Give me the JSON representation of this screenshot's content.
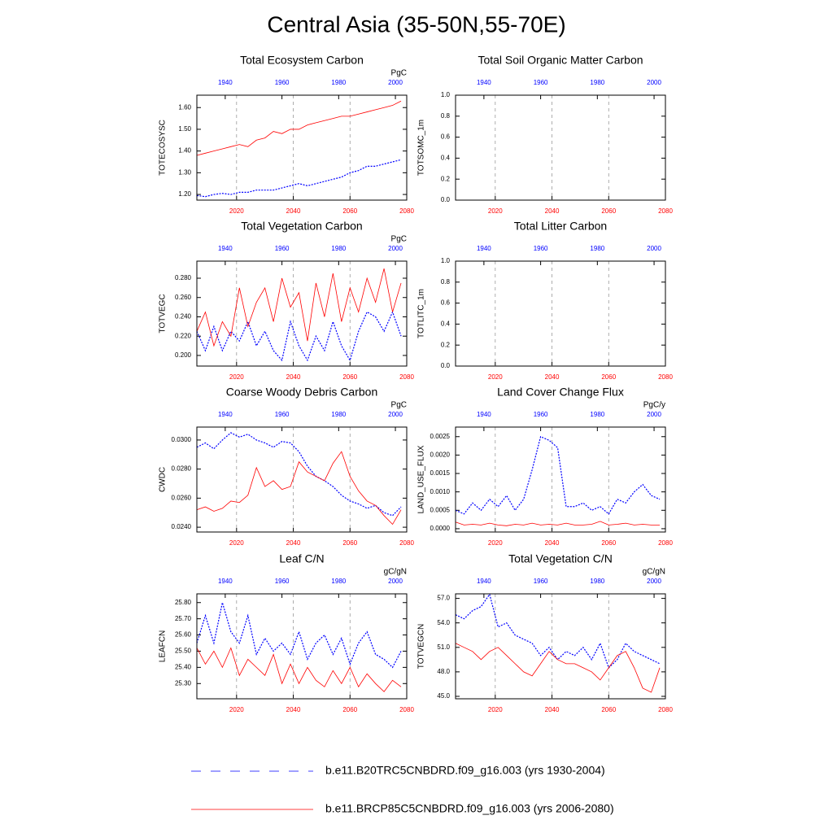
{
  "title": "Central Asia (35-50N,55-70E)",
  "legend": [
    {
      "name": "b.e11.B20TRC5CNBDRD.f09_g16.003 (yrs 1930-2004)",
      "color": "#0000ff",
      "dash": true,
      "axis": "x2"
    },
    {
      "name": "b.e11.BRCP85C5CNBDRD.f09_g16.003 (yrs 2006-2080)",
      "color": "#ff0000",
      "dash": false,
      "axis": "x"
    }
  ],
  "chart_data": [
    {
      "type": "line",
      "title": "Total Ecosystem Carbon",
      "ylabel": "TOTECOSYSC",
      "units": "PgC",
      "xlim": [
        2006,
        2080
      ],
      "xticks": [
        2020,
        2040,
        2060,
        2080
      ],
      "x2lim": [
        1930,
        2004
      ],
      "x2ticks": [
        1940,
        1960,
        1980,
        2000
      ],
      "ylim": [
        1.174,
        1.657
      ],
      "yticks": [
        {
          "value": 1.2,
          "label": "1.20"
        },
        {
          "value": 1.3,
          "label": "1.30"
        },
        {
          "value": 1.4,
          "label": "1.40"
        },
        {
          "value": 1.5,
          "label": "1.50"
        },
        {
          "value": 1.6,
          "label": "1.60"
        }
      ],
      "grid": true,
      "series": [
        {
          "x": [
            1930,
            1933,
            1936,
            1939,
            1942,
            1945,
            1948,
            1951,
            1954,
            1957,
            1960,
            1963,
            1966,
            1969,
            1972,
            1975,
            1978,
            1981,
            1984,
            1987,
            1990,
            1993,
            1996,
            1999,
            2002
          ],
          "values": [
            1.195,
            1.19,
            1.2,
            1.205,
            1.2,
            1.21,
            1.21,
            1.22,
            1.22,
            1.22,
            1.23,
            1.24,
            1.25,
            1.24,
            1.25,
            1.26,
            1.27,
            1.28,
            1.3,
            1.31,
            1.33,
            1.33,
            1.34,
            1.35,
            1.36
          ]
        },
        {
          "x": [
            2006,
            2009,
            2012,
            2015,
            2018,
            2021,
            2024,
            2027,
            2030,
            2033,
            2036,
            2039,
            2042,
            2045,
            2048,
            2051,
            2054,
            2057,
            2060,
            2063,
            2066,
            2069,
            2072,
            2075,
            2078
          ],
          "values": [
            1.38,
            1.39,
            1.4,
            1.41,
            1.42,
            1.43,
            1.42,
            1.45,
            1.46,
            1.49,
            1.48,
            1.5,
            1.5,
            1.52,
            1.53,
            1.54,
            1.55,
            1.56,
            1.56,
            1.57,
            1.58,
            1.59,
            1.6,
            1.61,
            1.63
          ]
        }
      ]
    },
    {
      "type": "line",
      "title": "Total Soil Organic Matter Carbon",
      "ylabel": "TOTSOMC_1m",
      "xlim": [
        2006,
        2080
      ],
      "xticks": [
        2020,
        2040,
        2060,
        2080
      ],
      "x2lim": [
        1930,
        2004
      ],
      "x2ticks": [
        1940,
        1960,
        1980,
        2000
      ],
      "ylim": [
        0,
        1
      ],
      "yticks": [
        {
          "value": 0,
          "label": "0.0"
        },
        0.2,
        0.4,
        0.6,
        0.8,
        {
          "value": 1,
          "label": "1.0"
        }
      ],
      "grid": true
    },
    {
      "type": "line",
      "title": "Total Vegetation Carbon",
      "ylabel": "TOTVEGC",
      "units": "PgC",
      "xlim": [
        2006,
        2080
      ],
      "xticks": [
        2020,
        2040,
        2060,
        2080
      ],
      "x2lim": [
        1930,
        2004
      ],
      "x2ticks": [
        1940,
        1960,
        1980,
        2000
      ],
      "ylim": [
        0.189,
        0.2977
      ],
      "yticks": [
        {
          "value": 0.2,
          "label": "0.200"
        },
        {
          "value": 0.22,
          "label": "0.220"
        },
        {
          "value": 0.24,
          "label": "0.240"
        },
        {
          "value": 0.26,
          "label": "0.260"
        },
        {
          "value": 0.28,
          "label": "0.280"
        }
      ],
      "grid": true,
      "series": [
        {
          "x": [
            1930,
            1933,
            1936,
            1939,
            1942,
            1945,
            1948,
            1951,
            1954,
            1957,
            1960,
            1963,
            1966,
            1969,
            1972,
            1975,
            1978,
            1981,
            1984,
            1987,
            1990,
            1993,
            1996,
            1999,
            2002
          ],
          "values": [
            0.225,
            0.205,
            0.23,
            0.205,
            0.225,
            0.215,
            0.235,
            0.21,
            0.225,
            0.205,
            0.195,
            0.235,
            0.21,
            0.195,
            0.22,
            0.205,
            0.235,
            0.21,
            0.195,
            0.225,
            0.245,
            0.24,
            0.225,
            0.245,
            0.22
          ]
        },
        {
          "x": [
            2006,
            2009,
            2012,
            2015,
            2018,
            2021,
            2024,
            2027,
            2030,
            2033,
            2036,
            2039,
            2042,
            2045,
            2048,
            2051,
            2054,
            2057,
            2060,
            2063,
            2066,
            2069,
            2072,
            2075,
            2078
          ],
          "values": [
            0.225,
            0.245,
            0.21,
            0.235,
            0.22,
            0.27,
            0.23,
            0.255,
            0.27,
            0.235,
            0.28,
            0.25,
            0.265,
            0.215,
            0.275,
            0.24,
            0.285,
            0.235,
            0.27,
            0.245,
            0.28,
            0.255,
            0.29,
            0.245,
            0.275
          ]
        }
      ]
    },
    {
      "type": "line",
      "title": "Total Litter Carbon",
      "ylabel": "TOTLITC_1m",
      "xlim": [
        2006,
        2080
      ],
      "xticks": [
        2020,
        2040,
        2060,
        2080
      ],
      "x2lim": [
        1930,
        2004
      ],
      "x2ticks": [
        1940,
        1960,
        1980,
        2000
      ],
      "ylim": [
        0,
        1
      ],
      "yticks": [
        {
          "value": 0,
          "label": "0.0"
        },
        0.2,
        0.4,
        0.6,
        0.8,
        {
          "value": 1,
          "label": "1.0"
        }
      ],
      "grid": true
    },
    {
      "type": "line",
      "title": "Coarse Woody Debris Carbon",
      "ylabel": "CWDC",
      "units": "PgC",
      "xlim": [
        2006,
        2080
      ],
      "xticks": [
        2020,
        2040,
        2060,
        2080
      ],
      "x2lim": [
        1930,
        2004
      ],
      "x2ticks": [
        1940,
        1960,
        1980,
        2000
      ],
      "ylim": [
        0.02367,
        0.03089
      ],
      "yticks": [
        {
          "value": 0.024,
          "label": "0.0240"
        },
        {
          "value": 0.026,
          "label": "0.0260"
        },
        {
          "value": 0.028,
          "label": "0.0280"
        },
        {
          "value": 0.03,
          "label": "0.0300"
        }
      ],
      "grid": true,
      "series": [
        {
          "x": [
            1930,
            1933,
            1936,
            1939,
            1942,
            1945,
            1948,
            1951,
            1954,
            1957,
            1960,
            1963,
            1966,
            1969,
            1972,
            1975,
            1978,
            1981,
            1984,
            1987,
            1990,
            1993,
            1996,
            1999,
            2002
          ],
          "values": [
            0.0295,
            0.0298,
            0.0294,
            0.03,
            0.0305,
            0.0302,
            0.0304,
            0.03,
            0.0298,
            0.0295,
            0.0299,
            0.0298,
            0.0292,
            0.0282,
            0.0275,
            0.0272,
            0.0268,
            0.0262,
            0.0258,
            0.0256,
            0.0253,
            0.0255,
            0.025,
            0.0248,
            0.0254
          ]
        },
        {
          "x": [
            2006,
            2009,
            2012,
            2015,
            2018,
            2021,
            2024,
            2027,
            2030,
            2033,
            2036,
            2039,
            2042,
            2045,
            2048,
            2051,
            2054,
            2057,
            2060,
            2063,
            2066,
            2069,
            2072,
            2075,
            2078
          ],
          "values": [
            0.0252,
            0.0254,
            0.0251,
            0.0253,
            0.0258,
            0.0257,
            0.0262,
            0.0281,
            0.0268,
            0.0272,
            0.0266,
            0.0268,
            0.0285,
            0.0278,
            0.0275,
            0.0272,
            0.0284,
            0.0292,
            0.0275,
            0.0265,
            0.0258,
            0.0255,
            0.0248,
            0.0242,
            0.0252
          ]
        }
      ]
    },
    {
      "type": "line",
      "title": "Land Cover Change Flux",
      "ylabel": "LAND_USE_FLUX",
      "units": "PgC/y",
      "xlim": [
        2006,
        2080
      ],
      "xticks": [
        2020,
        2040,
        2060,
        2080
      ],
      "x2lim": [
        1930,
        2004
      ],
      "x2ticks": [
        1940,
        1960,
        1980,
        2000
      ],
      "ylim": [
        -9e-05,
        0.00276
      ],
      "yticks": [
        {
          "value": 0,
          "label": "0.0000"
        },
        {
          "value": 0.0005,
          "label": "0.0005"
        },
        {
          "value": 0.001,
          "label": "0.0010"
        },
        {
          "value": 0.0015,
          "label": "0.0015"
        },
        {
          "value": 0.002,
          "label": "0.0020"
        },
        {
          "value": 0.0025,
          "label": "0.0025"
        }
      ],
      "grid": true,
      "series": [
        {
          "x": [
            1930,
            1933,
            1936,
            1939,
            1942,
            1945,
            1948,
            1951,
            1954,
            1957,
            1960,
            1963,
            1966,
            1969,
            1972,
            1975,
            1978,
            1981,
            1984,
            1987,
            1990,
            1993,
            1996,
            1999,
            2002
          ],
          "values": [
            0.0005,
            0.0004,
            0.0007,
            0.0005,
            0.0008,
            0.0006,
            0.0009,
            0.0005,
            0.0008,
            0.0016,
            0.0025,
            0.0024,
            0.0022,
            0.0006,
            0.0006,
            0.0007,
            0.0005,
            0.0006,
            0.0004,
            0.0008,
            0.0007,
            0.001,
            0.0012,
            0.0009,
            0.0008
          ]
        },
        {
          "x": [
            2006,
            2009,
            2012,
            2015,
            2018,
            2021,
            2024,
            2027,
            2030,
            2033,
            2036,
            2039,
            2042,
            2045,
            2048,
            2051,
            2054,
            2057,
            2060,
            2063,
            2066,
            2069,
            2072,
            2075,
            2078
          ],
          "values": [
            0.00018,
            0.0001,
            0.00012,
            0.0001,
            0.00015,
            0.0001,
            8e-05,
            0.00012,
            0.0001,
            0.00015,
            0.0001,
            0.00012,
            0.0001,
            0.00015,
            0.0001,
            0.0001,
            0.00012,
            0.0002,
            0.0001,
            0.00012,
            0.00015,
            0.0001,
            0.00012,
            0.0001,
            0.0001
          ]
        }
      ]
    },
    {
      "type": "line",
      "title": "Leaf C/N",
      "ylabel": "LEAFCN",
      "units": "gC/gN",
      "xlim": [
        2006,
        2080
      ],
      "xticks": [
        2020,
        2040,
        2060,
        2080
      ],
      "x2lim": [
        1930,
        2004
      ],
      "x2ticks": [
        1940,
        1960,
        1980,
        2000
      ],
      "ylim": [
        25.206,
        25.854
      ],
      "yticks": [
        {
          "value": 25.3,
          "label": "25.30"
        },
        {
          "value": 25.4,
          "label": "25.40"
        },
        {
          "value": 25.5,
          "label": "25.50"
        },
        {
          "value": 25.6,
          "label": "25.60"
        },
        {
          "value": 25.7,
          "label": "25.70"
        },
        {
          "value": 25.8,
          "label": "25.80"
        }
      ],
      "grid": true,
      "series": [
        {
          "x": [
            1930,
            1933,
            1936,
            1939,
            1942,
            1945,
            1948,
            1951,
            1954,
            1957,
            1960,
            1963,
            1966,
            1969,
            1972,
            1975,
            1978,
            1981,
            1984,
            1987,
            1990,
            1993,
            1996,
            1999,
            2002
          ],
          "values": [
            25.55,
            25.72,
            25.55,
            25.8,
            25.62,
            25.55,
            25.72,
            25.48,
            25.58,
            25.5,
            25.55,
            25.48,
            25.62,
            25.45,
            25.55,
            25.6,
            25.48,
            25.58,
            25.42,
            25.55,
            25.62,
            25.48,
            25.45,
            25.4,
            25.5
          ]
        },
        {
          "x": [
            2006,
            2009,
            2012,
            2015,
            2018,
            2021,
            2024,
            2027,
            2030,
            2033,
            2036,
            2039,
            2042,
            2045,
            2048,
            2051,
            2054,
            2057,
            2060,
            2063,
            2066,
            2069,
            2072,
            2075,
            2078
          ],
          "values": [
            25.52,
            25.42,
            25.5,
            25.4,
            25.52,
            25.35,
            25.45,
            25.4,
            25.35,
            25.48,
            25.3,
            25.42,
            25.3,
            25.4,
            25.32,
            25.28,
            25.38,
            25.3,
            25.4,
            25.28,
            25.36,
            25.3,
            25.25,
            25.32,
            25.28
          ]
        }
      ]
    },
    {
      "type": "line",
      "title": "Total Vegetation C/N",
      "ylabel": "TOTVEGCN",
      "units": "gC/gN",
      "xlim": [
        2006,
        2080
      ],
      "xticks": [
        2020,
        2040,
        2060,
        2080
      ],
      "x2lim": [
        1930,
        2004
      ],
      "x2ticks": [
        1940,
        1960,
        1980,
        2000
      ],
      "ylim": [
        44.7,
        57.56
      ],
      "yticks": [
        {
          "value": 45,
          "label": "45.0"
        },
        {
          "value": 48,
          "label": "48.0"
        },
        {
          "value": 51,
          "label": "51.0"
        },
        {
          "value": 54,
          "label": "54.0"
        },
        {
          "value": 57,
          "label": "57.0"
        }
      ],
      "grid": true,
      "series": [
        {
          "x": [
            1930,
            1933,
            1936,
            1939,
            1942,
            1945,
            1948,
            1951,
            1954,
            1957,
            1960,
            1963,
            1966,
            1969,
            1972,
            1975,
            1978,
            1981,
            1984,
            1987,
            1990,
            1993,
            1996,
            1999,
            2002
          ],
          "values": [
            55.0,
            54.5,
            55.5,
            56.0,
            57.5,
            53.5,
            54.0,
            52.5,
            52.0,
            51.5,
            50.0,
            51.0,
            49.5,
            50.5,
            50.0,
            51.0,
            49.5,
            51.5,
            48.5,
            49.5,
            51.5,
            50.5,
            50.0,
            49.5,
            49.0
          ]
        },
        {
          "x": [
            2006,
            2009,
            2012,
            2015,
            2018,
            2021,
            2024,
            2027,
            2030,
            2033,
            2036,
            2039,
            2042,
            2045,
            2048,
            2051,
            2054,
            2057,
            2060,
            2063,
            2066,
            2069,
            2072,
            2075,
            2078
          ],
          "values": [
            51.5,
            51.0,
            50.5,
            49.5,
            50.5,
            51.0,
            50.0,
            49.0,
            48.0,
            47.5,
            49.0,
            50.5,
            49.5,
            49.0,
            49.0,
            48.5,
            48.0,
            47.0,
            48.5,
            50.0,
            50.5,
            48.5,
            46.0,
            45.5,
            48.5
          ]
        }
      ]
    }
  ]
}
